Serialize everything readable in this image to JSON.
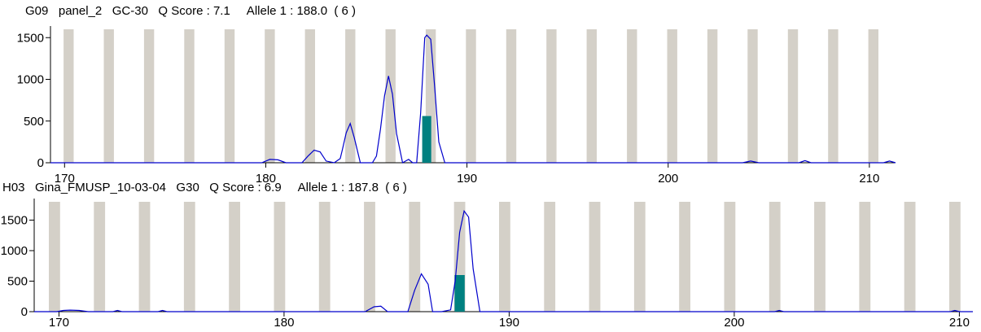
{
  "chart_data": [
    {
      "type": "line",
      "title": "G09   panel_2   GC-30   Q Score : 7.1     Allele 1 : 188.0  ( 6 )",
      "xlabel": "",
      "ylabel": "",
      "xlim": [
        169.3,
        211.3
      ],
      "ylim": [
        0,
        1600
      ],
      "x_ticks": [
        170,
        180,
        190,
        200,
        210
      ],
      "y_ticks": [
        0,
        500,
        1000,
        1500
      ],
      "bin_centers": [
        170.2,
        172.2,
        174.2,
        176.2,
        178.2,
        180.2,
        182.2,
        184.2,
        186.2,
        188.2,
        190.2,
        192.2,
        194.2,
        196.2,
        198.2,
        200.2,
        202.2,
        204.2,
        206.2,
        208.2,
        210.2
      ],
      "bin_color": "#d4d0c8",
      "trace_color": "#0000cc",
      "series": [
        {
          "x": [
            178.5,
            179.8,
            180.2,
            180.6,
            181.0,
            181.8,
            182.1,
            182.4,
            182.7,
            183.0,
            183.4,
            183.7,
            183.8,
            184.0,
            184.2,
            184.4,
            184.7,
            185.3,
            185.5,
            185.7,
            185.9,
            186.1,
            186.3,
            186.5,
            186.8,
            187.1,
            187.3,
            187.5,
            187.7,
            187.9,
            188.0,
            188.2,
            188.4,
            188.6,
            188.9,
            190.0,
            203.7,
            204.1,
            204.5,
            206.5,
            206.8,
            207.1,
            210.7,
            211.0,
            211.3
          ],
          "y": [
            0,
            0,
            40,
            35,
            0,
            0,
            80,
            150,
            130,
            20,
            0,
            50,
            150,
            360,
            470,
            300,
            0,
            0,
            80,
            400,
            800,
            1040,
            820,
            350,
            0,
            40,
            0,
            0,
            600,
            1500,
            1530,
            1480,
            900,
            250,
            0,
            0,
            0,
            20,
            0,
            0,
            25,
            0,
            0,
            20,
            0
          ]
        }
      ],
      "allele_bar": {
        "x": 188.0,
        "value": 560,
        "color": "#008080"
      }
    },
    {
      "type": "line",
      "title": "H03   Gina_FMUSP_10-03-04   G30   Q Score : 6.9     Allele 1 : 187.8  ( 6 )",
      "xlabel": "",
      "ylabel": "",
      "xlim": [
        168.9,
        210.6
      ],
      "ylim": [
        0,
        1800
      ],
      "x_ticks": [
        170,
        180,
        190,
        200,
        210
      ],
      "y_ticks": [
        0,
        500,
        1000,
        1500
      ],
      "bin_centers": [
        169.8,
        171.8,
        173.8,
        175.8,
        177.8,
        179.8,
        181.8,
        183.8,
        185.8,
        187.8,
        189.8,
        191.8,
        193.8,
        195.8,
        197.8,
        199.8,
        201.8,
        203.8,
        205.8,
        207.8,
        209.8
      ],
      "bin_color": "#d4d0c8",
      "trace_color": "#0000cc",
      "series": [
        {
          "x": [
            169.9,
            170.2,
            170.5,
            170.9,
            171.3,
            172.4,
            172.6,
            172.8,
            174.4,
            174.6,
            174.8,
            183.6,
            184.0,
            184.3,
            184.6,
            185.5,
            185.8,
            186.1,
            186.4,
            186.6,
            187.0,
            187.4,
            187.6,
            187.8,
            188.0,
            188.2,
            188.4,
            188.7,
            189.0,
            201.8,
            202.0,
            202.2,
            209.6,
            209.8,
            210.0
          ],
          "y": [
            0,
            20,
            25,
            20,
            0,
            0,
            20,
            0,
            0,
            20,
            0,
            0,
            80,
            90,
            0,
            0,
            350,
            620,
            450,
            0,
            0,
            30,
            500,
            1300,
            1650,
            1550,
            700,
            0,
            0,
            0,
            20,
            0,
            0,
            20,
            0
          ]
        }
      ],
      "allele_bar": {
        "x": 187.8,
        "value": 600,
        "color": "#008080"
      }
    }
  ]
}
